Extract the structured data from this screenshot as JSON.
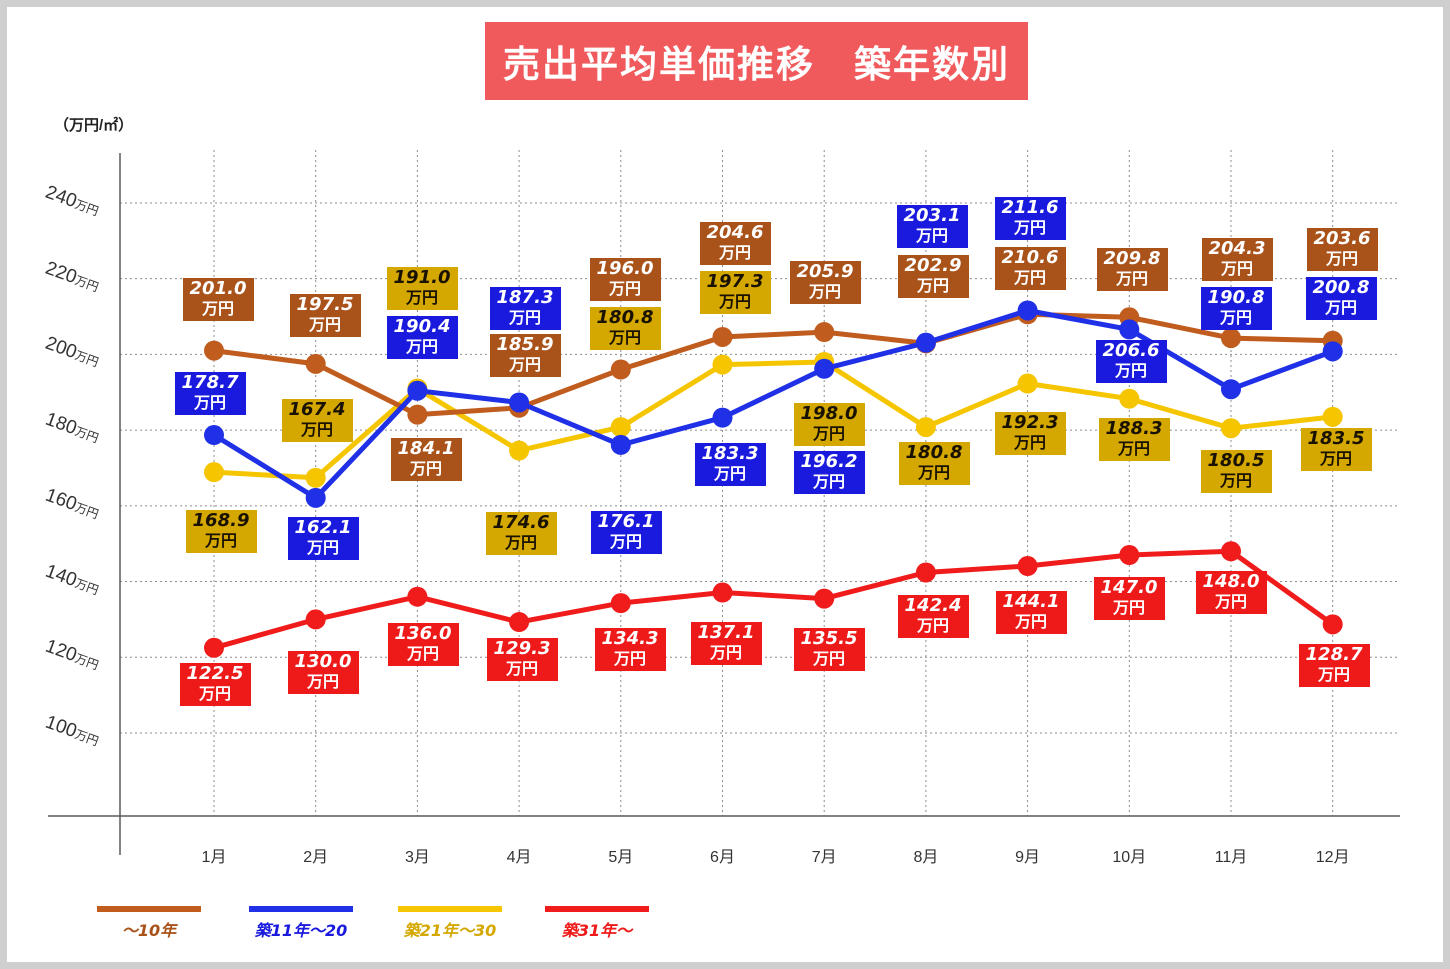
{
  "colors": {
    "title_bg": "#f05a5c",
    "title_text": "#ffffff"
  },
  "chart_data": {
    "type": "line",
    "title": "売出平均単価推移　築年数別",
    "ylabel": "（万円/㎡）",
    "unit": "万円",
    "categories": [
      "1月",
      "2月",
      "3月",
      "4月",
      "5月",
      "6月",
      "7月",
      "8月",
      "9月",
      "10月",
      "11月",
      "12月"
    ],
    "yticks": [
      100,
      120,
      140,
      160,
      180,
      200,
      220,
      240
    ],
    "ylim": [
      80,
      250
    ],
    "grid": true,
    "legend_position": "bottom-left",
    "series": [
      {
        "name": "～10年",
        "color": "#c05c1e",
        "label_bg": "#a9521a",
        "label_text": "#ffffff",
        "values": [
          201.0,
          197.5,
          184.1,
          185.9,
          196.0,
          204.6,
          205.9,
          202.9,
          210.6,
          209.8,
          204.3,
          203.6
        ]
      },
      {
        "name": "築11年～20",
        "color": "#1f30e6",
        "label_bg": "#1a1ade",
        "label_text": "#ffffff",
        "values": [
          178.7,
          162.1,
          190.4,
          187.3,
          176.1,
          183.3,
          196.2,
          203.1,
          211.6,
          206.6,
          190.8,
          200.8
        ]
      },
      {
        "name": "築21年～30",
        "color": "#f5c500",
        "label_bg": "#d4a800",
        "label_text": "#1a1200",
        "values": [
          168.9,
          167.4,
          191.0,
          174.6,
          180.8,
          197.3,
          198.0,
          180.8,
          192.3,
          188.3,
          180.5,
          183.5
        ]
      },
      {
        "name": "築31年～",
        "color": "#f01c1c",
        "label_bg": "#ee1a1a",
        "label_text": "#ffffff",
        "values": [
          122.5,
          130.0,
          136.0,
          129.3,
          134.3,
          137.1,
          135.5,
          142.4,
          144.1,
          147.0,
          148.0,
          128.7
        ]
      }
    ]
  }
}
